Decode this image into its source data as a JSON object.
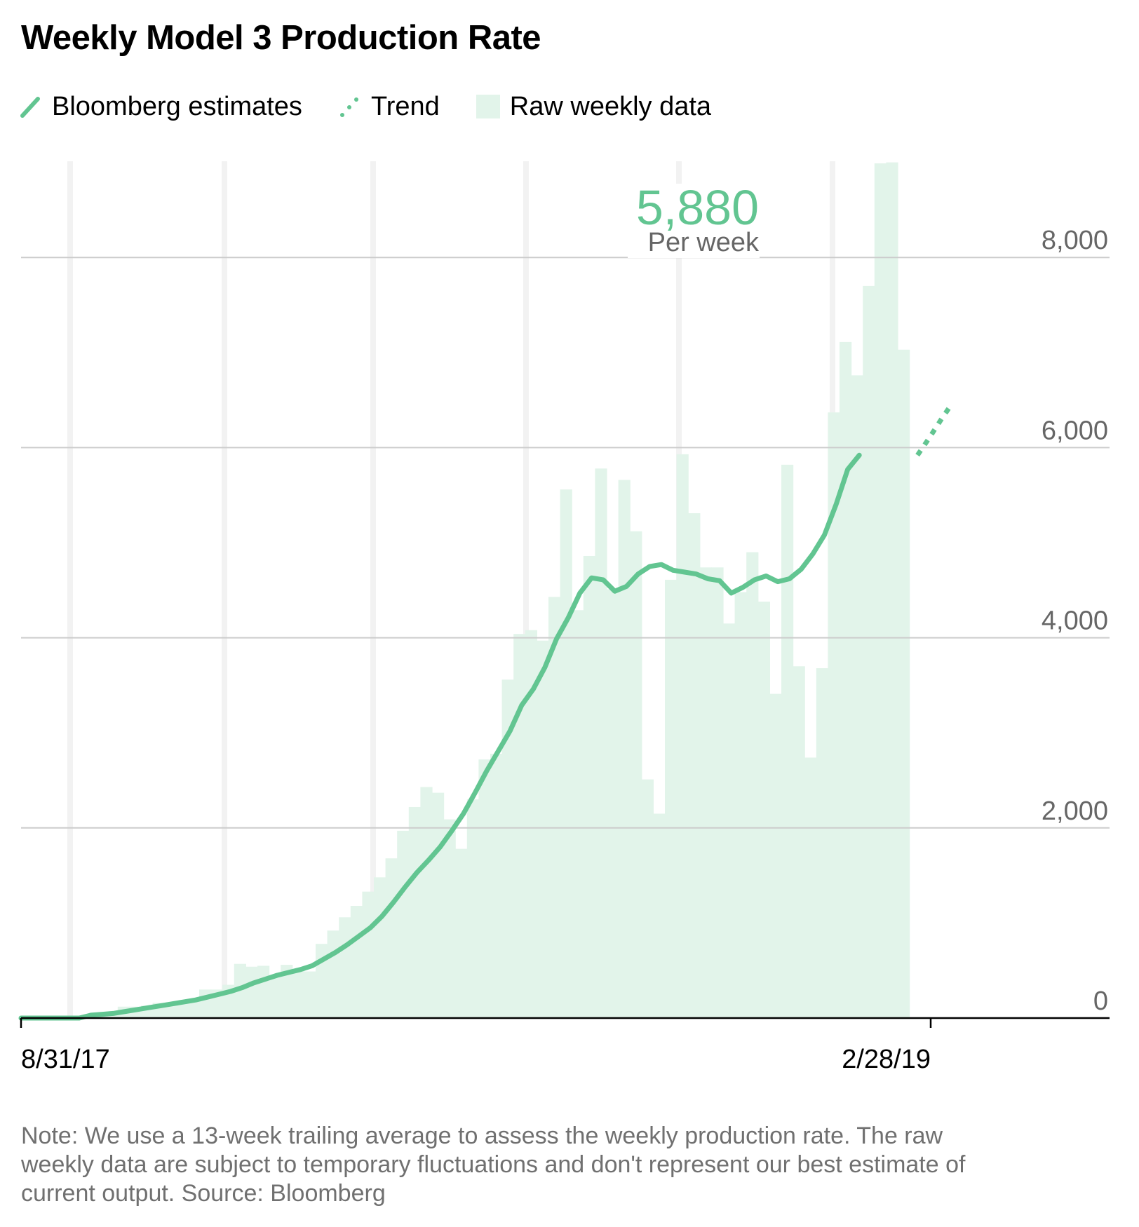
{
  "title": "Weekly Model 3 Production Rate",
  "legend": {
    "items": [
      {
        "label": "Bloomberg estimates",
        "icon": "solid-line-icon"
      },
      {
        "label": "Trend",
        "icon": "dotted-line-icon"
      },
      {
        "label": "Raw weekly data",
        "icon": "light-square-icon"
      }
    ]
  },
  "colors": {
    "line": "#62c591",
    "bars": "#e2f4ea",
    "grid": "#cccccc",
    "axis": "#000000",
    "vband": "#f2f2f2"
  },
  "callout": {
    "value": "5,880",
    "unit": "Per week"
  },
  "note": "Note: We use a 13-week trailing average to assess the weekly production rate. The raw weekly data are subject to temporary fluctuations and don't represent our best estimate of current output. Source: Bloomberg",
  "chart_data": {
    "type": "bar",
    "x_start": "8/31/17",
    "x_end": "2/28/19",
    "x_tick_labels": [
      "8/31/17",
      "2/28/19"
    ],
    "ylim": [
      0,
      9000
    ],
    "y_ticks": [
      0,
      2000,
      4000,
      6000,
      8000
    ],
    "y_tick_labels": [
      "0",
      "2,000",
      "4,000",
      "6,000",
      "8,000"
    ],
    "legend_position": "top",
    "series": [
      {
        "name": "Raw weekly data",
        "type": "bar",
        "values": [
          0,
          0,
          0,
          0,
          10,
          30,
          50,
          60,
          120,
          120,
          130,
          160,
          160,
          160,
          180,
          300,
          300,
          350,
          570,
          540,
          550,
          450,
          560,
          500,
          490,
          780,
          920,
          1060,
          1180,
          1330,
          1480,
          1680,
          1970,
          2220,
          2430,
          2370,
          2090,
          1780,
          2300,
          2720,
          2780,
          3560,
          4040,
          4080,
          3970,
          4430,
          5560,
          4290,
          4860,
          5780,
          4510,
          5660,
          5120,
          2510,
          2150,
          4610,
          5930,
          5310,
          4740,
          4740,
          4150,
          4480,
          4900,
          4380,
          3410,
          5820,
          3700,
          2740,
          3680,
          6370,
          7110,
          6760,
          7700,
          8990,
          9010,
          7030
        ]
      },
      {
        "name": "Bloomberg estimates",
        "type": "line",
        "values": [
          0,
          0,
          0,
          0,
          0,
          0,
          30,
          40,
          50,
          70,
          90,
          110,
          130,
          150,
          170,
          190,
          220,
          250,
          280,
          320,
          370,
          410,
          450,
          480,
          510,
          550,
          620,
          690,
          770,
          860,
          950,
          1070,
          1220,
          1380,
          1530,
          1660,
          1800,
          1970,
          2150,
          2370,
          2600,
          2810,
          3020,
          3290,
          3460,
          3690,
          3990,
          4210,
          4470,
          4630,
          4610,
          4490,
          4540,
          4670,
          4750,
          4770,
          4710,
          4690,
          4670,
          4620,
          4600,
          4470,
          4530,
          4610,
          4650,
          4590,
          4620,
          4720,
          4880,
          5080,
          5400,
          5770,
          5920
        ],
        "x_offset_weeks": 0
      },
      {
        "name": "Trend",
        "type": "line",
        "style": "dotted",
        "x_weeks": [
          77,
          78,
          79,
          80
        ],
        "values": [
          5920,
          6100,
          6290,
          6470
        ]
      }
    ]
  }
}
